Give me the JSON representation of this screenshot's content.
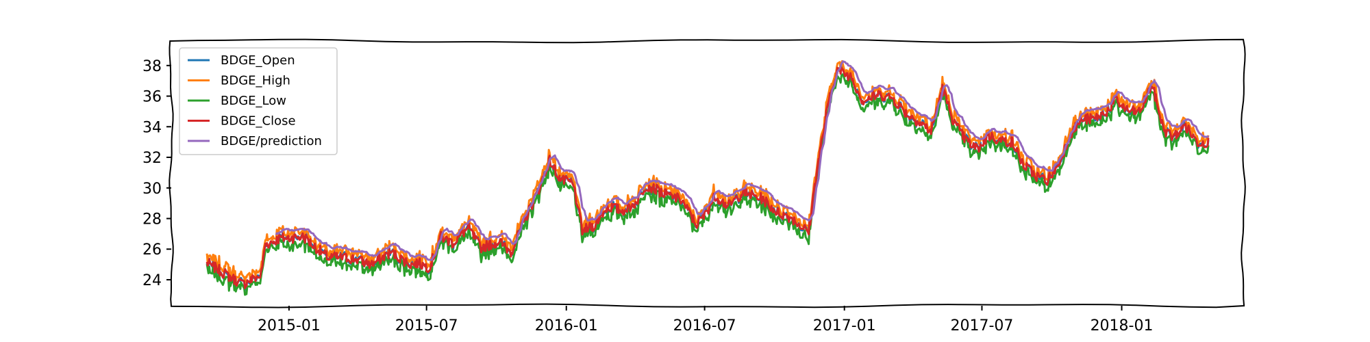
{
  "chart_data": {
    "type": "line",
    "title": "",
    "xlabel": "",
    "ylabel": "",
    "x_ticks": [
      "2015-01",
      "2015-07",
      "2016-01",
      "2016-07",
      "2017-01",
      "2017-07",
      "2018-01"
    ],
    "y_ticks": [
      24,
      26,
      28,
      30,
      32,
      34,
      36,
      38
    ],
    "xlim": [
      "2014-07-30",
      "2018-06-10"
    ],
    "ylim": [
      22.3,
      39.6
    ],
    "grid": false,
    "legend_position": "top-left",
    "series": [
      {
        "name": "BDGE_Open",
        "color": "#1f77b4"
      },
      {
        "name": "BDGE_High",
        "color": "#ff7f0e"
      },
      {
        "name": "BDGE_Low",
        "color": "#2ca02c"
      },
      {
        "name": "BDGE_Close",
        "color": "#d62728"
      },
      {
        "name": "BDGE/prediction",
        "color": "#9467bd"
      }
    ],
    "close_keypoints": {
      "x": [
        "2014-09-15",
        "2014-10-15",
        "2014-11-01",
        "2014-11-25",
        "2014-12-01",
        "2014-12-20",
        "2015-01-20",
        "2015-02-20",
        "2015-03-25",
        "2015-04-20",
        "2015-05-15",
        "2015-06-10",
        "2015-06-20",
        "2015-07-05",
        "2015-07-20",
        "2015-08-05",
        "2015-08-25",
        "2015-09-10",
        "2015-10-05",
        "2015-10-20",
        "2015-11-10",
        "2015-11-25",
        "2015-12-10",
        "2015-12-25",
        "2016-01-10",
        "2016-01-22",
        "2016-02-05",
        "2016-02-25",
        "2016-03-15",
        "2016-04-01",
        "2016-04-15",
        "2016-05-10",
        "2016-06-01",
        "2016-06-20",
        "2016-07-01",
        "2016-07-15",
        "2016-08-01",
        "2016-08-20",
        "2016-09-15",
        "2016-10-05",
        "2016-10-25",
        "2016-11-08",
        "2016-11-15",
        "2016-11-25",
        "2016-12-10",
        "2016-12-22",
        "2017-01-10",
        "2017-01-25",
        "2017-02-15",
        "2017-03-05",
        "2017-03-25",
        "2017-04-10",
        "2017-04-25",
        "2017-05-10",
        "2017-05-25",
        "2017-06-10",
        "2017-06-25",
        "2017-07-10",
        "2017-07-25",
        "2017-08-10",
        "2017-08-25",
        "2017-09-10",
        "2017-09-25",
        "2017-10-10",
        "2017-10-25",
        "2017-11-10",
        "2017-11-25",
        "2017-12-10",
        "2017-12-25",
        "2018-01-10",
        "2018-01-25",
        "2018-02-10",
        "2018-02-25",
        "2018-03-10",
        "2018-03-25",
        "2018-04-10",
        "2018-04-25"
      ],
      "values": [
        25.1,
        24.2,
        23.7,
        24.3,
        26.3,
        26.7,
        26.8,
        25.5,
        25.4,
        25.0,
        25.8,
        25.0,
        25.1,
        24.8,
        26.8,
        26.4,
        27.4,
        26.1,
        26.5,
        25.8,
        28.2,
        29.8,
        31.8,
        30.5,
        30.3,
        27.2,
        27.5,
        28.8,
        28.5,
        29.0,
        30.2,
        29.6,
        29.2,
        27.6,
        28.2,
        29.5,
        28.8,
        29.7,
        29.3,
        28.4,
        28.0,
        27.4,
        27.1,
        30.9,
        35.3,
        37.7,
        37.3,
        35.7,
        36.1,
        35.9,
        34.8,
        34.3,
        33.7,
        36.5,
        34.3,
        33.1,
        32.5,
        33.4,
        33.1,
        33.0,
        31.5,
        30.8,
        30.5,
        31.5,
        33.5,
        34.5,
        34.5,
        34.9,
        35.7,
        35.0,
        35.0,
        36.8,
        33.8,
        33.3,
        34.1,
        33.0,
        33.0
      ]
    }
  }
}
